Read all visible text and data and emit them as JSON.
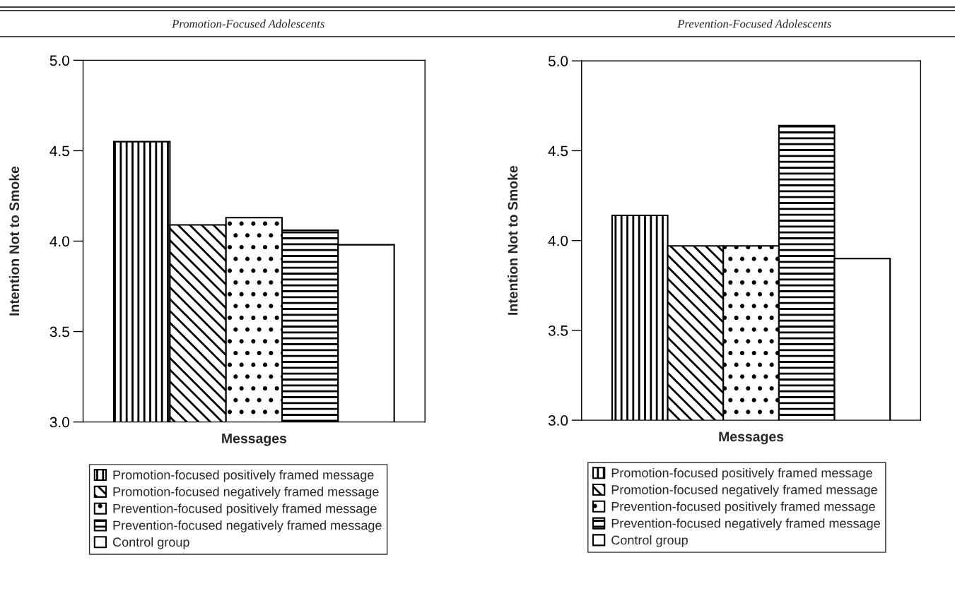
{
  "chart_data": [
    {
      "type": "bar",
      "title": "Promotion-Focused Adolescents",
      "xlabel": "Messages",
      "ylabel": "Intention Not to Smoke",
      "categories": [
        null
      ],
      "ylim": [
        3.0,
        5.0
      ],
      "yticks": [
        {
          "value": 3.0,
          "label": "3.0"
        },
        {
          "value": 3.5,
          "label": "3.5"
        },
        {
          "value": 4.0,
          "label": "4.0"
        },
        {
          "value": 4.5,
          "label": "4.5"
        },
        {
          "value": 5.0,
          "label": "5.0"
        }
      ],
      "legend": "bottom",
      "grid": false,
      "series": [
        {
          "name": "Promotion-focused positively framed message",
          "color": "#000000",
          "values": [
            4.55
          ]
        },
        {
          "name": "Promotion-focused negatively framed message",
          "color": "#000000",
          "values": [
            4.09
          ]
        },
        {
          "name": "Prevention-focused positively framed message",
          "color": "#000000",
          "values": [
            4.13
          ]
        },
        {
          "name": "Prevention-focused negatively framed message",
          "color": "#000000",
          "values": [
            4.06
          ]
        },
        {
          "name": "Control group",
          "color": "#ffffff",
          "values": [
            3.98
          ]
        }
      ]
    },
    {
      "type": "bar",
      "title": "Prevention-Focused Adolescents",
      "xlabel": "Messages",
      "ylabel": "Intention Not to Smoke",
      "categories": [
        null
      ],
      "ylim": [
        3.0,
        5.0
      ],
      "yticks": [
        {
          "value": 3.0,
          "label": "3.0"
        },
        {
          "value": 3.5,
          "label": "3.5"
        },
        {
          "value": 4.0,
          "label": "4.0"
        },
        {
          "value": 4.5,
          "label": "4.5"
        },
        {
          "value": 5.0,
          "label": "5.0"
        }
      ],
      "legend": "bottom",
      "grid": false,
      "series": [
        {
          "name": "Promotion-focused positively framed message",
          "color": "#000000",
          "values": [
            4.14
          ]
        },
        {
          "name": "Promotion-focused negatively framed message",
          "color": "#000000",
          "values": [
            3.97
          ]
        },
        {
          "name": "Prevention-focused positively framed message",
          "color": "#000000",
          "values": [
            3.97
          ]
        },
        {
          "name": "Prevention-focused negatively framed message",
          "color": "#000000",
          "values": [
            4.64
          ]
        },
        {
          "name": "Control group",
          "color": "#ffffff",
          "values": [
            3.9
          ]
        }
      ]
    }
  ]
}
